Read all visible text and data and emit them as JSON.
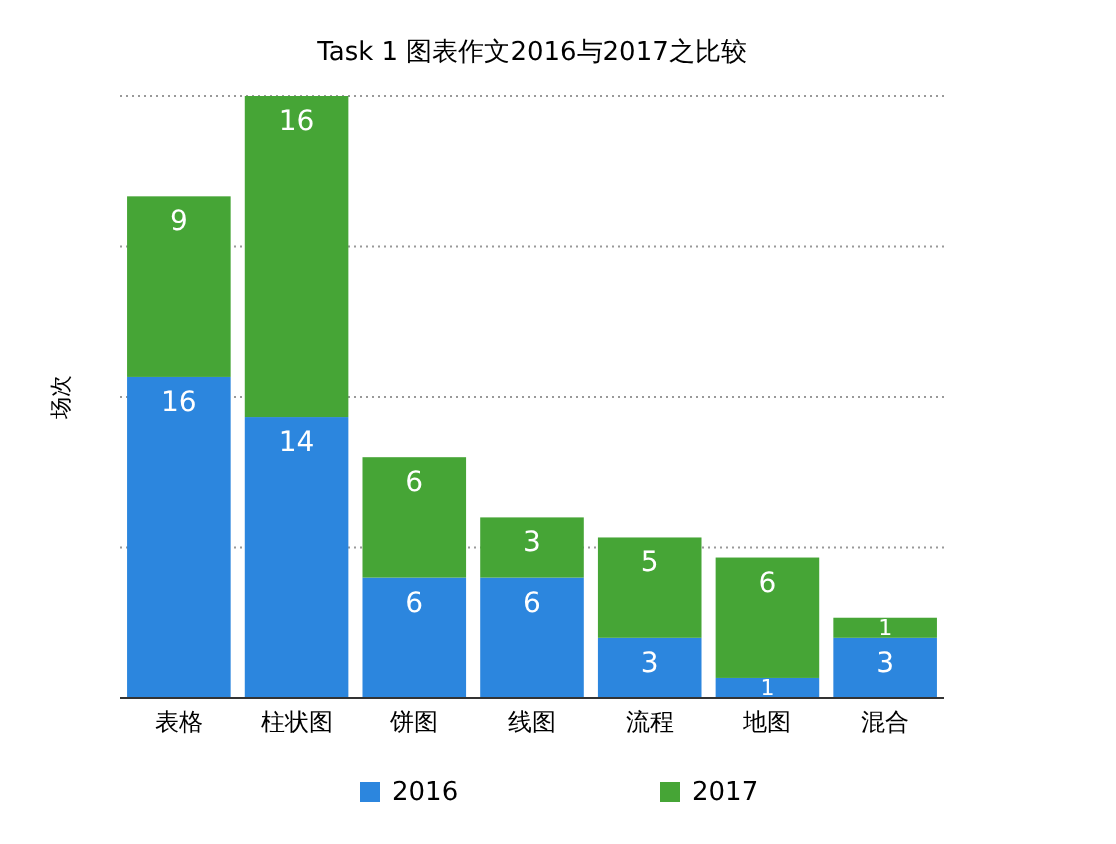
{
  "chart_data": {
    "type": "bar",
    "title": "Task 1 图表作文2016与2017之比较",
    "ylabel": "场次",
    "categories": [
      "表格",
      "柱状图",
      "饼图",
      "线图",
      "流程",
      "地图",
      "混合"
    ],
    "stacked": true,
    "series": [
      {
        "name": "2016",
        "color": "#2c86de",
        "values": [
          16,
          14,
          6,
          6,
          3,
          1,
          3
        ]
      },
      {
        "name": "2017",
        "color": "#46a536",
        "values": [
          9,
          16,
          6,
          3,
          5,
          6,
          1
        ]
      }
    ],
    "ylim": [
      0,
      30
    ],
    "yticks": [
      {
        "value": 7.5,
        "label": null
      },
      {
        "value": 15,
        "label": null
      },
      {
        "value": 22.5,
        "label": null
      },
      {
        "value": 30,
        "label": null
      }
    ],
    "tick_labels": "x",
    "grid": "y",
    "legend": "bottom",
    "data_labels": true
  }
}
